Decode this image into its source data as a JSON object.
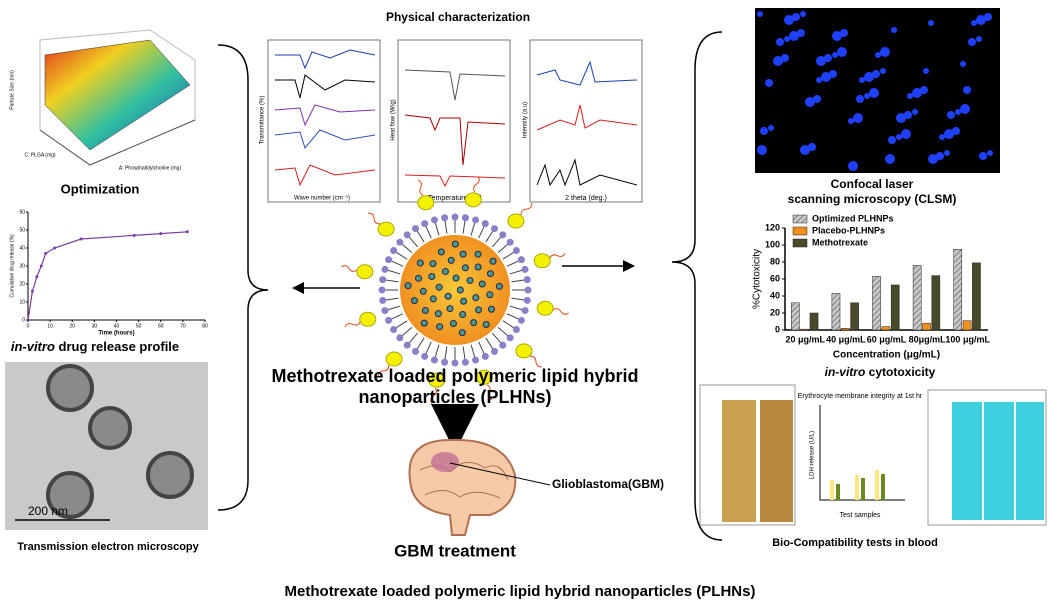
{
  "header": {
    "title": "Physical characterization"
  },
  "optimization": {
    "label": "Optimization",
    "y_axis": "Particle Size (nm)",
    "x_axis": "A: Phosphatidylcholine (mg)",
    "z_axis": "C: PLGA (mg)"
  },
  "release": {
    "label_italic": "in-vitro",
    "label_rest": " drug release profile",
    "x_label": "Time (hours)",
    "y_label": "Cumulative drug release (%)",
    "x": [
      0,
      2,
      4,
      6,
      8,
      12,
      24,
      48,
      60,
      72
    ],
    "values": [
      0,
      16,
      24,
      30,
      37,
      40,
      45,
      47,
      48,
      49
    ],
    "xlim": [
      0,
      80
    ],
    "xticks": [
      0,
      10,
      20,
      30,
      40,
      50,
      60,
      70,
      80
    ],
    "ylim": [
      0,
      60
    ],
    "yticks": [
      0,
      10,
      20,
      30,
      40,
      50,
      60
    ],
    "color": "#7a3fa0"
  },
  "tem": {
    "label": "Transmission electron microscopy",
    "scale": "200 nm"
  },
  "ftir": {
    "x_label": "Wave number (cm⁻¹)",
    "y_label": "Transmittance (%)"
  },
  "dsc": {
    "x_label": "Temperature (°C)",
    "y_label": "Heat flow (W/g)"
  },
  "xrd": {
    "x_label": "2 theta (deg.)",
    "y_label": "Intensity (a.u)"
  },
  "center": {
    "line1": "Methotrexate loaded polymeric lipid hybrid",
    "line2": "nanoparticles (PLHNs)",
    "glioblastoma": "Glioblastoma(GBM)",
    "treatment": "GBM treatment"
  },
  "clsm": {
    "line1": "Confocal laser",
    "line2": "scanning microscopy (CLSM)"
  },
  "cytotoxicity": {
    "label_italic": "in-vitro",
    "label_rest": " cytotoxicity",
    "y_label": "%Cytotoxicity",
    "x_label": "Concentration (μg/mL)",
    "categories": [
      "20 μg/mL",
      "40 μg/mL",
      "60 μg/mL",
      "80μg/mL",
      "100 μg/mL"
    ],
    "series": [
      {
        "name": "Optimized PLHNPs",
        "color": "#a9a9b0",
        "values": [
          32,
          43,
          63,
          76,
          95
        ]
      },
      {
        "name": "Placebo-PLHNPs",
        "color": "#f0901e",
        "values": [
          1,
          2,
          4,
          8,
          11
        ]
      },
      {
        "name": "Methotrexate",
        "color": "#4a4a2a",
        "values": [
          20,
          32,
          53,
          64,
          79
        ]
      }
    ],
    "ylim": [
      0,
      120
    ],
    "yticks": [
      0,
      20,
      40,
      60,
      80,
      100,
      120
    ]
  },
  "biocompat": {
    "label": "Bio-Compatibility tests in blood",
    "chart_title": "Erythrocyte membrane integrity at 1st hr",
    "x_label": "Test samples",
    "y_label": "LDH release (U/L)"
  },
  "footer": {
    "title": "Methotrexate loaded polymeric lipid hybrid nanoparticles (PLHNs)"
  }
}
